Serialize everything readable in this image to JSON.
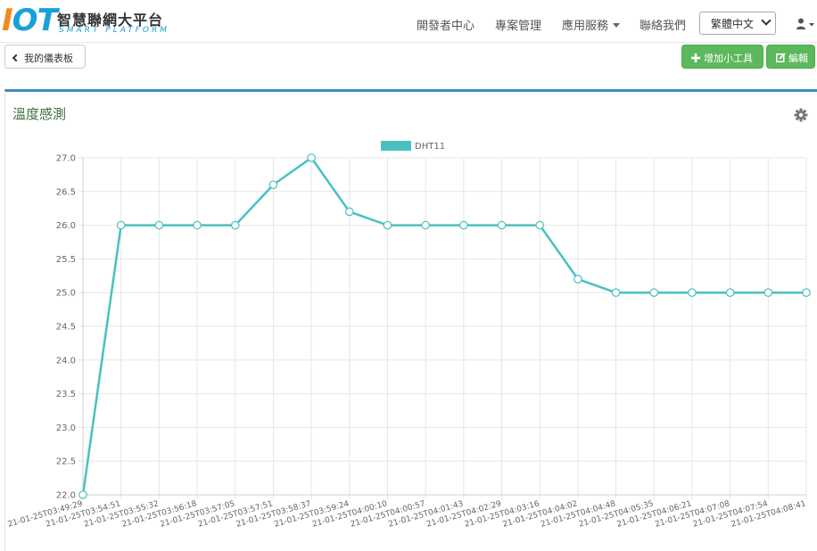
{
  "header": {
    "logo_letters": [
      "I",
      "O",
      "T"
    ],
    "logo_title": "智慧聯網大平台",
    "logo_subtitle": "SMART PLATFORM",
    "nav": [
      {
        "label": "開發者中心"
      },
      {
        "label": "專案管理"
      },
      {
        "label": "應用服務"
      },
      {
        "label": "聯絡我們"
      }
    ],
    "language_selected": "繁體中文"
  },
  "toolbar": {
    "back_label": "我的儀表板",
    "add_widget_label": "增加小工具",
    "edit_label": "編輯"
  },
  "panel": {
    "title": "溫度感測"
  },
  "colors": {
    "series": "#4bc0c0",
    "panel_border": "#3c8dbc",
    "green_button": "#5cb85c"
  },
  "chart_data": {
    "type": "line",
    "title": "",
    "xlabel": "",
    "ylabel": "",
    "legend_position": "top",
    "grid": true,
    "ylim": [
      22.0,
      27.0
    ],
    "yticks": [
      "27.0",
      "26.5",
      "26.0",
      "25.5",
      "25.0",
      "24.5",
      "24.0",
      "23.5",
      "23.0",
      "22.5",
      "22.0"
    ],
    "categories": [
      "21-01-25T03:49:29",
      "21-01-25T03:54:51",
      "21-01-25T03:55:32",
      "21-01-25T03:56:18",
      "21-01-25T03:57:05",
      "21-01-25T03:57:51",
      "21-01-25T03:58:37",
      "21-01-25T03:59:24",
      "21-01-25T04:00:10",
      "21-01-25T04:00:57",
      "21-01-25T04:01:43",
      "21-01-25T04:02:29",
      "21-01-25T04:03:16",
      "21-01-25T04:04:02",
      "21-01-25T04:04:48",
      "21-01-25T04:05:35",
      "21-01-25T04:06:21",
      "21-01-25T04:07:08",
      "21-01-25T04:07:54",
      "21-01-25T04:08:41"
    ],
    "series": [
      {
        "name": "DHT11",
        "values": [
          22.0,
          26.0,
          26.0,
          26.0,
          26.0,
          26.6,
          27.0,
          26.2,
          26.0,
          26.0,
          26.0,
          26.0,
          26.0,
          25.2,
          25.0,
          25.0,
          25.0,
          25.0,
          25.0,
          25.0
        ]
      }
    ]
  }
}
